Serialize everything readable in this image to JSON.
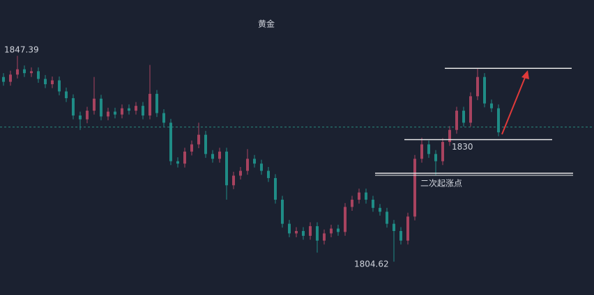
{
  "chart_data": {
    "type": "candlestick",
    "title": "黄金",
    "ylim": [
      1797.7,
      1859.0
    ],
    "up_color": "#a8435f",
    "down_color": "#1f8c86",
    "open": [
      1843.0,
      1842.0,
      1843.5,
      1844.6,
      1843.8,
      1844.2,
      1842.6,
      1841.5,
      1842.3,
      1840.0,
      1838.6,
      1835.0,
      1834.2,
      1836.0,
      1838.5,
      1834.8,
      1835.8,
      1835.2,
      1836.5,
      1836.0,
      1837.0,
      1835.0,
      1839.5,
      1835.5,
      1833.5,
      1825.5,
      1825.0,
      1827.5,
      1829.0,
      1831.0,
      1827.0,
      1826.0,
      1827.5,
      1820.5,
      1822.5,
      1823.5,
      1826.0,
      1825.0,
      1823.5,
      1822.0,
      1817.5,
      1812.5,
      1810.5,
      1811.0,
      1810.0,
      1812.0,
      1809.0,
      1810.5,
      1811.5,
      1810.8,
      1816.0,
      1817.5,
      1819.0,
      1817.5,
      1815.8,
      1815.0,
      1812.5,
      1811.0,
      1809.0,
      1814.0,
      1826.0,
      1829.0,
      1827.0,
      1825.5,
      1829.5,
      1832.0,
      1836.0,
      1833.5,
      1839.0,
      1843.0,
      1837.5,
      1836.5
    ],
    "high": [
      1843.8,
      1844.3,
      1847.39,
      1845.4,
      1845.0,
      1845.0,
      1843.4,
      1843.1,
      1843.1,
      1840.8,
      1839.4,
      1835.8,
      1836.8,
      1843.0,
      1839.3,
      1836.6,
      1836.6,
      1837.3,
      1837.3,
      1837.8,
      1837.8,
      1845.5,
      1840.3,
      1836.3,
      1834.3,
      1826.3,
      1828.3,
      1829.8,
      1833.5,
      1831.8,
      1827.8,
      1828.3,
      1828.3,
      1823.3,
      1824.3,
      1828.0,
      1826.8,
      1825.8,
      1824.3,
      1822.8,
      1818.3,
      1813.3,
      1811.8,
      1811.8,
      1812.8,
      1812.8,
      1811.3,
      1812.3,
      1812.3,
      1816.8,
      1818.3,
      1819.8,
      1819.8,
      1818.3,
      1816.6,
      1815.8,
      1813.3,
      1811.8,
      1814.8,
      1826.8,
      1830.4,
      1829.8,
      1827.8,
      1830.3,
      1832.8,
      1836.8,
      1836.8,
      1839.8,
      1844.9,
      1843.8,
      1838.3,
      1837.3
    ],
    "low": [
      1841.2,
      1841.2,
      1842.7,
      1843.0,
      1843.0,
      1841.8,
      1840.7,
      1840.7,
      1839.2,
      1837.8,
      1834.2,
      1832.0,
      1833.4,
      1835.2,
      1834.0,
      1834.0,
      1834.4,
      1834.4,
      1835.2,
      1835.2,
      1834.2,
      1834.2,
      1834.7,
      1832.7,
      1824.7,
      1824.2,
      1824.2,
      1826.7,
      1828.2,
      1826.2,
      1825.2,
      1825.2,
      1817.5,
      1819.7,
      1821.7,
      1822.7,
      1824.2,
      1822.7,
      1821.2,
      1816.7,
      1811.7,
      1809.7,
      1809.7,
      1809.2,
      1809.2,
      1806.5,
      1808.2,
      1809.7,
      1810.0,
      1810.0,
      1815.2,
      1816.7,
      1816.7,
      1815.0,
      1814.2,
      1811.7,
      1804.62,
      1808.2,
      1808.2,
      1813.2,
      1825.2,
      1826.2,
      1822.5,
      1824.7,
      1828.7,
      1831.2,
      1832.7,
      1832.7,
      1838.2,
      1836.7,
      1835.7,
      1830.7
    ],
    "close": [
      1842.0,
      1843.5,
      1844.6,
      1843.8,
      1844.2,
      1842.6,
      1841.5,
      1842.3,
      1840.0,
      1838.6,
      1835.0,
      1834.2,
      1836.0,
      1838.5,
      1834.8,
      1835.8,
      1835.2,
      1836.5,
      1836.0,
      1837.0,
      1835.0,
      1839.5,
      1835.5,
      1833.5,
      1825.5,
      1825.0,
      1827.5,
      1829.0,
      1831.0,
      1827.0,
      1826.0,
      1827.5,
      1820.5,
      1822.5,
      1823.5,
      1826.0,
      1825.0,
      1823.5,
      1822.0,
      1817.5,
      1812.5,
      1810.5,
      1811.0,
      1810.0,
      1812.0,
      1809.0,
      1810.5,
      1811.5,
      1810.8,
      1816.0,
      1817.5,
      1819.0,
      1817.5,
      1815.8,
      1815.0,
      1812.5,
      1811.0,
      1809.0,
      1814.0,
      1826.0,
      1829.0,
      1827.0,
      1825.5,
      1829.5,
      1832.0,
      1836.0,
      1833.5,
      1839.0,
      1843.0,
      1837.5,
      1836.5,
      1831.5
    ],
    "current_price": 1832.6,
    "levels": [
      {
        "value": 1844.8
      },
      {
        "value": 1830
      },
      {
        "value": 1823,
        "label": "二次起涨点"
      }
    ]
  }
}
